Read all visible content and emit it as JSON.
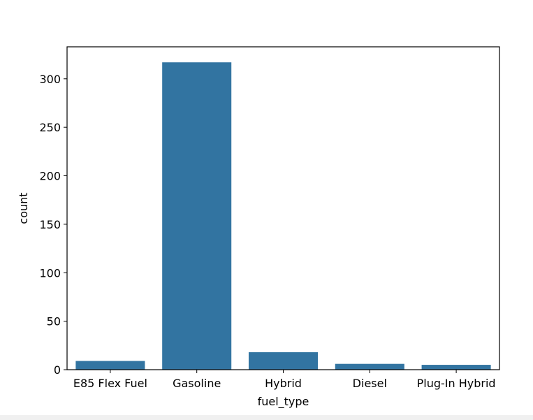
{
  "chart_data": {
    "type": "bar",
    "categories": [
      "E85 Flex Fuel",
      "Gasoline",
      "Hybrid",
      "Diesel",
      "Plug-In Hybrid"
    ],
    "values": [
      9,
      317,
      18,
      6,
      5
    ],
    "title": "",
    "xlabel": "fuel_type",
    "ylabel": "count",
    "ylim": [
      0,
      333
    ],
    "yticks": [
      0,
      50,
      100,
      150,
      200,
      250,
      300
    ],
    "grid": false,
    "bar_color": "#3274a1"
  }
}
